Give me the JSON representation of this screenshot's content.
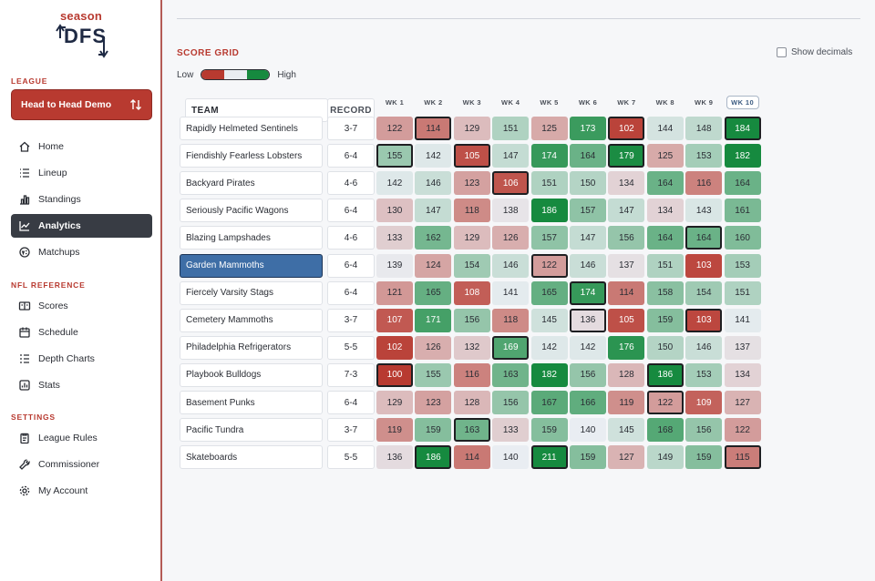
{
  "logo": {
    "top": "season",
    "main": "DFS"
  },
  "sidebar": {
    "league_label": "LEAGUE",
    "league_value": "Head to Head Demo",
    "nav": [
      {
        "label": "Home",
        "icon": "home-icon"
      },
      {
        "label": "Lineup",
        "icon": "list-icon"
      },
      {
        "label": "Standings",
        "icon": "bar-chart-icon"
      },
      {
        "label": "Analytics",
        "icon": "line-chart-icon",
        "active": true
      },
      {
        "label": "Matchups",
        "icon": "versus-icon"
      }
    ],
    "nfl_label": "NFL REFERENCE",
    "nfl": [
      {
        "label": "Scores",
        "icon": "scoreboard-icon"
      },
      {
        "label": "Schedule",
        "icon": "calendar-icon"
      },
      {
        "label": "Depth Charts",
        "icon": "depth-list-icon"
      },
      {
        "label": "Stats",
        "icon": "stats-icon"
      }
    ],
    "settings_label": "SETTINGS",
    "settings": [
      {
        "label": "League Rules",
        "icon": "clipboard-icon"
      },
      {
        "label": "Commissioner",
        "icon": "wrench-icon"
      },
      {
        "label": "My Account",
        "icon": "gear-icon"
      }
    ]
  },
  "grid": {
    "title": "SCORE GRID",
    "show_decimals_label": "Show decimals",
    "legend_low": "Low",
    "legend_high": "High",
    "col_team": "TEAM",
    "col_record": "RECORD",
    "weeks": [
      "WK 1",
      "WK 2",
      "WK 3",
      "WK 4",
      "WK 5",
      "WK 6",
      "WK 7",
      "WK 8",
      "WK 9",
      "WK 10"
    ],
    "selected_week": "WK 10",
    "selected_team": "Garden Mammoths",
    "rows": [
      {
        "team": "Rapidly Helmeted Sentinels",
        "record": "3-7",
        "scores": [
          122,
          114,
          129,
          151,
          125,
          173,
          102,
          144,
          148,
          184
        ],
        "highlight": [
          1,
          6,
          9
        ]
      },
      {
        "team": "Fiendishly Fearless Lobsters",
        "record": "6-4",
        "scores": [
          155,
          142,
          105,
          147,
          174,
          164,
          179,
          125,
          153,
          182
        ],
        "highlight": [
          0,
          2,
          6
        ]
      },
      {
        "team": "Backyard Pirates",
        "record": "4-6",
        "scores": [
          142,
          146,
          123,
          106,
          151,
          150,
          134,
          164,
          116,
          164
        ],
        "highlight": [
          3
        ]
      },
      {
        "team": "Seriously Pacific Wagons",
        "record": "6-4",
        "scores": [
          130,
          147,
          118,
          138,
          186,
          157,
          147,
          134,
          143,
          161
        ],
        "highlight": []
      },
      {
        "team": "Blazing Lampshades",
        "record": "4-6",
        "scores": [
          133,
          162,
          129,
          126,
          157,
          147,
          156,
          164,
          164,
          160
        ],
        "highlight": [
          8
        ]
      },
      {
        "team": "Garden Mammoths",
        "record": "6-4",
        "scores": [
          139,
          124,
          154,
          146,
          122,
          146,
          137,
          151,
          103,
          153
        ],
        "highlight": [
          4
        ]
      },
      {
        "team": "Fiercely Varsity Stags",
        "record": "6-4",
        "scores": [
          121,
          165,
          108,
          141,
          165,
          174,
          114,
          158,
          154,
          151
        ],
        "highlight": [
          5
        ]
      },
      {
        "team": "Cemetery Mammoths",
        "record": "3-7",
        "scores": [
          107,
          171,
          156,
          118,
          145,
          136,
          105,
          159,
          103,
          141
        ],
        "highlight": [
          5,
          8
        ]
      },
      {
        "team": "Philadelphia Refrigerators",
        "record": "5-5",
        "scores": [
          102,
          126,
          132,
          169,
          142,
          142,
          176,
          150,
          146,
          137
        ],
        "highlight": [
          3
        ]
      },
      {
        "team": "Playbook Bulldogs",
        "record": "7-3",
        "scores": [
          100,
          155,
          116,
          163,
          182,
          156,
          128,
          186,
          153,
          134
        ],
        "highlight": [
          0,
          7
        ]
      },
      {
        "team": "Basement Punks",
        "record": "6-4",
        "scores": [
          129,
          123,
          128,
          156,
          167,
          166,
          119,
          122,
          109,
          127
        ],
        "highlight": [
          7
        ]
      },
      {
        "team": "Pacific Tundra",
        "record": "3-7",
        "scores": [
          119,
          159,
          163,
          133,
          159,
          140,
          145,
          168,
          156,
          122
        ],
        "highlight": [
          2
        ]
      },
      {
        "team": "Skateboards",
        "record": "5-5",
        "scores": [
          136,
          186,
          114,
          140,
          211,
          159,
          127,
          149,
          159,
          115
        ],
        "highlight": [
          1,
          4,
          9
        ]
      }
    ]
  },
  "colors": {
    "accent": "#b83a30",
    "selected_team": "#3e6ea6",
    "cell_low": "#b83a30",
    "cell_mid": "#e9edf2",
    "cell_high": "#168a3f"
  }
}
